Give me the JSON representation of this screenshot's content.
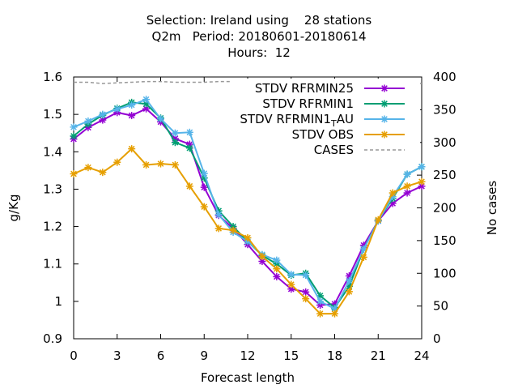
{
  "title_lines": [
    "Selection: Ireland using    28 stations",
    "Q2m   Period: 20180601-20180614",
    "Hours:  12"
  ],
  "chart_data": {
    "type": "line",
    "xlabel": "Forecast length",
    "ylabel": "g/Kg",
    "y2label": "No cases",
    "xlim": [
      0,
      24
    ],
    "ylim": [
      0.9,
      1.6
    ],
    "y2lim": [
      0,
      400
    ],
    "xticks": [
      "0",
      "3",
      "6",
      "9",
      "12",
      "15",
      "18",
      "21",
      "24"
    ],
    "yticks": [
      "0.9",
      "1",
      "1.1",
      "1.2",
      "1.3",
      "1.4",
      "1.5",
      "1.6"
    ],
    "y2ticks": [
      "0",
      "50",
      "100",
      "150",
      "200",
      "250",
      "300",
      "350",
      "400"
    ],
    "grid": false,
    "legend_position": "top-right",
    "x": [
      0,
      1,
      2,
      3,
      4,
      5,
      6,
      7,
      8,
      9,
      10,
      11,
      12,
      13,
      14,
      15,
      16,
      17,
      18,
      19,
      20,
      21,
      22,
      23,
      24
    ],
    "series": [
      {
        "name": "STDV RFRMIN25",
        "label_main": "STDV RFRMIN25",
        "label_sub": "",
        "label_after": "",
        "color": "#9400d3",
        "axis": "y",
        "values": [
          1.434,
          1.465,
          1.485,
          1.505,
          1.497,
          1.515,
          1.48,
          1.435,
          1.42,
          1.305,
          1.23,
          1.195,
          1.152,
          1.107,
          1.066,
          1.033,
          1.025,
          0.99,
          0.993,
          1.068,
          1.15,
          1.215,
          1.262,
          1.29,
          1.308
        ]
      },
      {
        "name": "STDV RFRMIN1",
        "label_main": "STDV RFRMIN1",
        "label_sub": "",
        "label_after": "",
        "color": "#009e73",
        "axis": "y",
        "values": [
          1.442,
          1.474,
          1.498,
          1.516,
          1.532,
          1.528,
          1.49,
          1.425,
          1.41,
          1.33,
          1.242,
          1.2,
          1.16,
          1.123,
          1.1,
          1.07,
          1.075,
          1.015,
          0.983,
          1.04,
          1.14,
          1.216,
          1.275,
          1.34,
          1.36
        ]
      },
      {
        "name": "STDV RFRMIN1_TAU",
        "label_main": "STDV RFRMIN1",
        "label_sub": "T",
        "label_after": "AU",
        "color": "#56b4e9",
        "axis": "y",
        "values": [
          1.466,
          1.482,
          1.5,
          1.514,
          1.525,
          1.54,
          1.488,
          1.45,
          1.452,
          1.342,
          1.232,
          1.185,
          1.16,
          1.125,
          1.11,
          1.072,
          1.07,
          1.0,
          0.98,
          1.055,
          1.14,
          1.215,
          1.28,
          1.34,
          1.36
        ]
      },
      {
        "name": "STDV OBS",
        "label_main": "STDV OBS",
        "label_sub": "",
        "label_after": "",
        "color": "#e69f00",
        "axis": "y",
        "values": [
          1.341,
          1.358,
          1.345,
          1.372,
          1.408,
          1.365,
          1.368,
          1.365,
          1.308,
          1.253,
          1.195,
          1.19,
          1.17,
          1.12,
          1.087,
          1.045,
          1.007,
          0.967,
          0.967,
          1.026,
          1.118,
          1.218,
          1.29,
          1.308,
          1.32
        ]
      },
      {
        "name": "CASES",
        "label_main": "CASES",
        "label_sub": "",
        "label_after": "",
        "color": "#999999",
        "axis": "y2",
        "dashed": true,
        "values": [
          392,
          392,
          390,
          391,
          392,
          393,
          393,
          392,
          392,
          392,
          393,
          393,
          392,
          393,
          393,
          392,
          392,
          392,
          392,
          393,
          393,
          392,
          392,
          391,
          390
        ]
      }
    ]
  }
}
